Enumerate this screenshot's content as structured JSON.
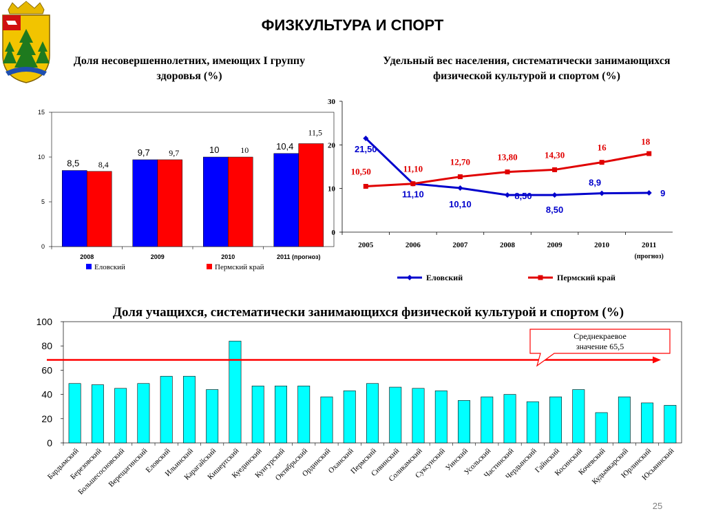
{
  "slide": {
    "title": "ФИЗКУЛЬТУРА И СПОРТ",
    "page_number": "25"
  },
  "colors": {
    "blue": "#0000FF",
    "red": "#FF0000",
    "cyan": "#00FFFF",
    "dark_blue_line": "#0000CC",
    "red_line": "#E00000",
    "label_blue": "#0000CC",
    "label_red": "#E00000"
  },
  "chart_data": [
    {
      "id": "health-group",
      "type": "bar",
      "title": "Доля несовершеннолетних, имеющих I группу здоровья (%)",
      "categories": [
        "2008",
        "2009",
        "2010",
        "2011 (прогноз)"
      ],
      "series": [
        {
          "name": "Еловский",
          "values": [
            8.5,
            9.7,
            10,
            10.4
          ],
          "labels": [
            "8,5",
            "9,7",
            "10",
            "10,4"
          ]
        },
        {
          "name": "Пермский край",
          "values": [
            8.4,
            9.7,
            10,
            11.5
          ],
          "labels": [
            "8,4",
            "9,7",
            "10",
            "11,5"
          ]
        }
      ],
      "yticks": [
        "0",
        "5",
        "10",
        "15"
      ],
      "ylim": [
        0,
        15
      ],
      "grid": false,
      "legend_position": "bottom"
    },
    {
      "id": "sport-share",
      "type": "line",
      "title": "Удельный вес населения, систематически занимающихся физической культурой и спортом (%)",
      "categories": [
        "2005",
        "2006",
        "2007",
        "2008",
        "2009",
        "2010",
        "2011"
      ],
      "category_note": "(прогноз)",
      "series": [
        {
          "name": "Еловский",
          "values": [
            21.5,
            11.1,
            10.1,
            8.5,
            8.5,
            8.9,
            9
          ],
          "labels": [
            "21,50",
            "11,10",
            "10,10",
            "8,50",
            "8,50",
            "8,9",
            "9"
          ]
        },
        {
          "name": "Пермский край",
          "values": [
            10.5,
            11.1,
            12.7,
            13.8,
            14.3,
            16,
            18
          ],
          "labels": [
            "10,50",
            "11,10",
            "12,70",
            "13,80",
            "14,30",
            "16",
            "18"
          ]
        }
      ],
      "yticks": [
        "0",
        "10",
        "20",
        "30"
      ],
      "ylim": [
        0,
        30
      ],
      "grid": false,
      "legend_position": "bottom"
    },
    {
      "id": "students-sport",
      "type": "bar",
      "title": "Доля учащихся, систематически занимающихся физической культурой и спортом (%)",
      "categories": [
        "Бардымский",
        "Березовский",
        "Большесосновский",
        "Верещагинский",
        "Еловский",
        "Ильинский",
        "Карагайский",
        "Кишертский",
        "Куединский",
        "Кунгурский",
        "Октябрьский",
        "Ординский",
        "Оханский",
        "Пермский",
        "Сивинский",
        "Соликамский",
        "Суксунский",
        "Уинский",
        "Усольский",
        "Частинский",
        "Чердынский",
        "Гайнский",
        "Косинский",
        "Кочевский",
        "Кудымкарский",
        "Юрлинский",
        "Юсьвинский"
      ],
      "values": [
        49,
        48,
        45,
        49,
        55,
        55,
        44,
        84,
        47,
        47,
        47,
        38,
        43,
        49,
        46,
        45,
        43,
        35,
        38,
        40,
        34,
        38,
        44,
        25,
        38,
        33,
        31
      ],
      "yticks": [
        "0",
        "20",
        "40",
        "60",
        "80",
        "100"
      ],
      "ylim": [
        0,
        100
      ],
      "reference_value": 65.5,
      "annotation": [
        "Среднекраевое",
        "значение 65,5"
      ],
      "grid": false
    }
  ]
}
